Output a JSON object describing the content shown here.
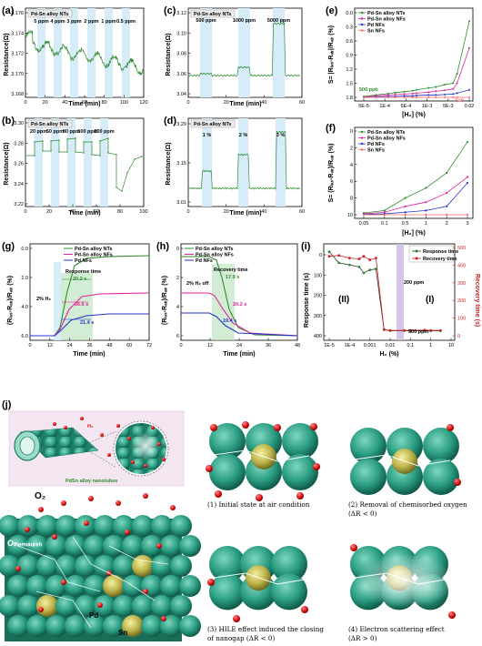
{
  "panels": {
    "a": {
      "label": "(a)",
      "legend": "Pd-Sn alloy NTs",
      "ylabel": "Resistance(Ω)",
      "xlabel": "Time (min)",
      "yticks": [
        "3.176",
        "3.174",
        "3.172",
        "3.170",
        "3.168"
      ],
      "xticks": [
        "0",
        "20",
        "40",
        "60",
        "80",
        "100",
        "120"
      ],
      "conc": [
        "5 ppm",
        "4 ppm",
        "3 ppm",
        "2 ppm",
        "1 ppm",
        "0.5 ppm"
      ]
    },
    "b": {
      "label": "(b)",
      "legend": "Pd-Sn alloy NTs",
      "ylabel": "Resistance(Ω)",
      "xlabel": "Time (min)",
      "yticks": [
        "3.30",
        "3.28",
        "3.26",
        "3.24",
        "3.22"
      ],
      "xticks": [
        "0",
        "20",
        "40",
        "60",
        "80",
        "100"
      ],
      "conc": [
        "20 ppm",
        "50 ppm",
        "80 ppm",
        "100 ppm",
        "200 ppm"
      ]
    },
    "c": {
      "label": "(c)",
      "legend": "Pd-Sn alloy NTs",
      "ylabel": "Resistance(Ω)",
      "xlabel": "Time (min)",
      "yticks": [
        "3.12",
        "3.10",
        "3.08",
        "3.06",
        "3.04"
      ],
      "xticks": [
        "0",
        "20",
        "40",
        "60"
      ],
      "conc": [
        "500 ppm",
        "1000 ppm",
        "5000 ppm"
      ]
    },
    "d": {
      "label": "(d)",
      "legend": "Pd-Sn alloy NTs",
      "ylabel": "Resistance(Ω)",
      "xlabel": "Time (min)",
      "yticks": [
        "3.29",
        "3.15",
        "3.01"
      ],
      "xticks": [
        "0",
        "20",
        "40",
        "60"
      ],
      "conc": [
        "1 %",
        "2 %",
        "3 %"
      ]
    },
    "e": {
      "label": "(e)",
      "ylabel": "S= |Rₗₐₛ-Rₐᵢᵣ|/Rₐᵢᵣ (%)",
      "xlabel": "[H₂] (%)",
      "yticks": [
        "0.0",
        "0.3",
        "0.6",
        "0.9",
        "1.2",
        "1.5",
        "1.8"
      ],
      "xticks": [
        "5E-5",
        "1E-4",
        "5E-4",
        "1E-3",
        "5E-3",
        "0.02"
      ],
      "note": "500 ppb",
      "note2": "Y=0"
    },
    "f": {
      "label": "(f)",
      "ylabel": "S= (Rₗₐₛ-Rₐᵢᵣ)/Rₐᵢᵣ (%)",
      "xlabel": "[H₂] (%)",
      "yticks": [
        "0",
        "2",
        "4",
        "6",
        "8",
        "10"
      ],
      "xticks": [
        "0.05",
        "0.1",
        "0.5",
        "1",
        "2",
        "3"
      ]
    },
    "g": {
      "label": "(g)",
      "ylabel": "(Rₗₐₛ-Rₐᵢᵣ)/Rₐᵢᵣ (%)",
      "xlabel": "Time (min)",
      "yticks": [
        "0.0",
        "2.0",
        "4.0",
        "6.0"
      ],
      "xticks": [
        "0",
        "12",
        "24",
        "36",
        "48",
        "60",
        "72"
      ],
      "title_note": "Response time",
      "h2": "2% H₂",
      "t1": "20.2 s",
      "t2": "26.6 s",
      "t3": "21.4 s"
    },
    "h": {
      "label": "(h)",
      "ylabel": "(Rₗₐₛ-Rₐᵢᵣ)/Rₐᵢᵣ (%)",
      "xlabel": "Time (min)",
      "yticks": [
        "0",
        "2",
        "4",
        "6"
      ],
      "xticks": [
        "0",
        "12",
        "24",
        "36",
        "48"
      ],
      "title_note": "Recovery time",
      "h2": "2% H₂ off",
      "t1": "17.9 s",
      "t2": "20.2 s",
      "t3": "19.4 s"
    },
    "i": {
      "label": "(i)",
      "ylabel": "Response time (s)",
      "y2label": "Recovery time (s)",
      "xlabel": "H₂ (%)",
      "yticks": [
        "0",
        "100",
        "200",
        "300",
        "400"
      ],
      "y2ticks": [
        "0",
        "100",
        "200",
        "300",
        "400",
        "500"
      ],
      "xticks": [
        "1E-5",
        "1E-4",
        "0.001",
        "0.01",
        "0.1",
        "1",
        "10"
      ],
      "region2": "(II)",
      "region1": "(I)",
      "n200": "200 ppm",
      "n500": "500 ppm",
      "legend": [
        "Response time",
        "Recovery time"
      ]
    },
    "j": {
      "label": "(j)",
      "h2": "H₂",
      "nanotubes": "PdSn alloy nanotubes",
      "o2": "O₂",
      "ochem": "Oₗₕₑₘᵢₛᵤᵣₑₕ",
      "pd": "Pd",
      "sn": "Sn",
      "cap1": "(1) Initial state at air condition",
      "cap2a": "(2) Removal of chemisorbed oxygen",
      "cap2b": "(ΔR < 0)",
      "cap3a": "(3) HILE effect induced the closing",
      "cap3b": "of nanogap (ΔR < 0)",
      "cap4a": "(4) Electron scattering effect",
      "cap4b": "(ΔR > 0)"
    }
  },
  "series": [
    "Pd-Sn alloy NTs",
    "Pd-Sn alloy NFs",
    "Pd NFs",
    "Sn NFs"
  ],
  "colors": {
    "nts": "#2e8b2e",
    "nfs": "#e0229c",
    "pd": "#2233cc",
    "sn": "#ff6666",
    "band": "#d6ecf8",
    "resp": "#333333",
    "rec": "#cc2222"
  },
  "chart_data": [
    {
      "type": "line",
      "panel": "e",
      "x": [
        5e-05,
        0.0001,
        0.0002,
        0.0003,
        0.0005,
        0.0008,
        0.001,
        0.002,
        0.003,
        0.005,
        0.008,
        0.01,
        0.02
      ],
      "series": [
        {
          "name": "Pd-Sn alloy NTs",
          "values": [
            0.02,
            0.05,
            0.08,
            0.1,
            0.12,
            0.14,
            0.16,
            0.2,
            0.22,
            0.27,
            0.3,
            0.5,
            1.62
          ]
        },
        {
          "name": "Pd-Sn alloy NFs",
          "values": [
            0.01,
            0.03,
            0.05,
            0.06,
            0.07,
            0.08,
            0.09,
            0.11,
            0.13,
            0.15,
            0.18,
            0.3,
            1.05
          ]
        },
        {
          "name": "Pd NFs",
          "values": [
            0.0,
            0.01,
            0.02,
            0.02,
            0.03,
            0.03,
            0.04,
            0.05,
            0.05,
            0.06,
            0.07,
            0.09,
            0.16
          ]
        },
        {
          "name": "Sn NFs",
          "values": [
            0,
            0,
            0,
            0,
            0,
            0,
            0,
            0,
            0,
            0,
            0,
            0,
            0
          ]
        }
      ]
    },
    {
      "type": "line",
      "panel": "f",
      "x": [
        0.05,
        0.1,
        0.5,
        1,
        2,
        3
      ],
      "series": [
        {
          "name": "Pd-Sn alloy NTs",
          "values": [
            0.2,
            0.5,
            2.0,
            3.2,
            5.0,
            8.7
          ]
        },
        {
          "name": "Pd-Sn alloy NFs",
          "values": [
            0.1,
            0.3,
            1.0,
            1.5,
            2.6,
            4.5
          ]
        },
        {
          "name": "Pd NFs",
          "values": [
            0.05,
            0.1,
            0.3,
            0.5,
            1.0,
            3.8
          ]
        },
        {
          "name": "Sn NFs",
          "values": [
            0,
            0,
            0,
            0,
            0,
            0
          ]
        }
      ]
    },
    {
      "type": "line",
      "panel": "i",
      "x": [
        1e-05,
        3e-05,
        0.0001,
        0.0003,
        0.0005,
        0.001,
        0.002,
        0.005,
        0.01,
        0.05,
        0.1,
        0.5,
        1,
        3
      ],
      "series": [
        {
          "name": "Response time",
          "values": [
            415,
            360,
            350,
            340,
            310,
            325,
            330,
            30,
            25,
            25,
            24,
            25,
            24,
            24
          ]
        },
        {
          "name": "Recovery time",
          "values": [
            450,
            455,
            440,
            435,
            450,
            430,
            440,
            35,
            30,
            30,
            30,
            32,
            30,
            30
          ]
        }
      ]
    }
  ]
}
